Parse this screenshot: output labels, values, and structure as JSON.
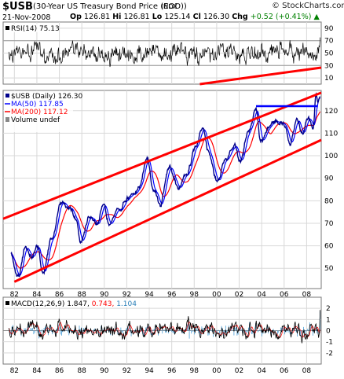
{
  "header": {
    "symbol": "$USB",
    "description": "(30-Year US Treasury Bond Price (EOD))",
    "exchange": "INDX",
    "watermark": "© StockCharts.com",
    "date": "21-Nov-2008",
    "open_label": "Op",
    "open": "126.81",
    "high_label": "Hi",
    "high": "126.81",
    "low_label": "Lo",
    "low": "125.14",
    "close_label": "Cl",
    "close": "126.30",
    "change_label": "Chg",
    "change": "+0.52 (+0.41%)",
    "change_arrow": "▲"
  },
  "colors": {
    "price": "#00008b",
    "ma50": "#0000ff",
    "ma200": "#ff0000",
    "trendlines": "#ff0000",
    "resistance": "#0000ff",
    "macd": "#000000",
    "signal": "#ff0000",
    "histogram": "#4a9fd8"
  },
  "chart_data": [
    {
      "type": "line",
      "title": "RSI(14) 75.13",
      "series": [
        {
          "name": "RSI(14)",
          "last": 75.13
        }
      ],
      "yticks": [
        90,
        70,
        50,
        30,
        10
      ],
      "ylim": [
        0,
        100
      ],
      "reference_lines": [
        70,
        30
      ],
      "grid": true
    },
    {
      "type": "line",
      "title": "$USB (Daily) 126.30",
      "legend": [
        {
          "name": "MA(50)",
          "label": "MA(50) 117.85",
          "color": "#0000ff"
        },
        {
          "name": "MA(200)",
          "label": "MA(200) 117.12",
          "color": "#ff0000"
        },
        {
          "name": "Volume",
          "label": "Volume undef",
          "color": "#888888"
        }
      ],
      "legend_placement": "top-left",
      "xticks": [
        "82",
        "84",
        "86",
        "88",
        "90",
        "92",
        "94",
        "96",
        "98",
        "00",
        "02",
        "04",
        "06",
        "08"
      ],
      "xlim": [
        1981.0,
        2009.3
      ],
      "yticks": [
        120,
        110,
        100,
        90,
        80,
        70,
        60,
        50
      ],
      "ylim": [
        41,
        129
      ],
      "grid": true,
      "price_anchors": [
        {
          "x": 1981.7,
          "y": 57
        },
        {
          "x": 1982.3,
          "y": 45
        },
        {
          "x": 1983.0,
          "y": 59
        },
        {
          "x": 1983.5,
          "y": 55
        },
        {
          "x": 1984.1,
          "y": 61
        },
        {
          "x": 1984.5,
          "y": 47
        },
        {
          "x": 1985.3,
          "y": 62
        },
        {
          "x": 1986.2,
          "y": 80
        },
        {
          "x": 1986.8,
          "y": 77
        },
        {
          "x": 1987.5,
          "y": 72
        },
        {
          "x": 1987.9,
          "y": 62
        },
        {
          "x": 1988.6,
          "y": 72
        },
        {
          "x": 1989.4,
          "y": 70
        },
        {
          "x": 1989.9,
          "y": 78
        },
        {
          "x": 1990.4,
          "y": 70
        },
        {
          "x": 1991.2,
          "y": 76
        },
        {
          "x": 1992.4,
          "y": 82
        },
        {
          "x": 1993.1,
          "y": 86
        },
        {
          "x": 1993.8,
          "y": 100
        },
        {
          "x": 1994.4,
          "y": 84
        },
        {
          "x": 1994.9,
          "y": 78
        },
        {
          "x": 1995.8,
          "y": 96
        },
        {
          "x": 1996.5,
          "y": 86
        },
        {
          "x": 1997.3,
          "y": 92
        },
        {
          "x": 1998.1,
          "y": 104
        },
        {
          "x": 1998.7,
          "y": 113
        },
        {
          "x": 1999.3,
          "y": 101
        },
        {
          "x": 2000.0,
          "y": 88
        },
        {
          "x": 2000.8,
          "y": 98
        },
        {
          "x": 2001.6,
          "y": 104
        },
        {
          "x": 2002.1,
          "y": 96
        },
        {
          "x": 2002.9,
          "y": 112
        },
        {
          "x": 2003.5,
          "y": 122
        },
        {
          "x": 2003.9,
          "y": 106
        },
        {
          "x": 2004.6,
          "y": 112
        },
        {
          "x": 2005.3,
          "y": 116
        },
        {
          "x": 2005.9,
          "y": 114
        },
        {
          "x": 2006.5,
          "y": 106
        },
        {
          "x": 2007.2,
          "y": 115
        },
        {
          "x": 2007.6,
          "y": 110
        },
        {
          "x": 2008.2,
          "y": 118
        },
        {
          "x": 2008.6,
          "y": 113
        },
        {
          "x": 2008.85,
          "y": 127
        },
        {
          "x": 2009.0,
          "y": 123
        },
        {
          "x": 2009.2,
          "y": 126.3
        }
      ],
      "channel_upper": [
        {
          "x": 1981.0,
          "y": 72
        },
        {
          "x": 2009.3,
          "y": 128
        }
      ],
      "channel_lower": [
        {
          "x": 1982.0,
          "y": 44
        },
        {
          "x": 2009.3,
          "y": 107
        }
      ],
      "resistance": {
        "x": [
          2003.5,
          2009.0
        ],
        "y": 122
      }
    },
    {
      "type": "line",
      "title": "MACD(12,26,9)",
      "values_label": {
        "macd": "1.847",
        "signal": "0.743",
        "histogram": "1.104"
      },
      "series": [
        {
          "name": "MACD",
          "last": 1.847
        },
        {
          "name": "signal",
          "last": 0.743
        },
        {
          "name": "histogram",
          "last": 1.104
        }
      ],
      "yticks": [
        2,
        1,
        0,
        -1,
        -2
      ],
      "ylim": [
        -3.0,
        3.0
      ],
      "xticks": [
        "82",
        "84",
        "86",
        "88",
        "90",
        "92",
        "94",
        "96",
        "98",
        "00",
        "02",
        "04",
        "06",
        "08"
      ],
      "grid": true
    }
  ]
}
